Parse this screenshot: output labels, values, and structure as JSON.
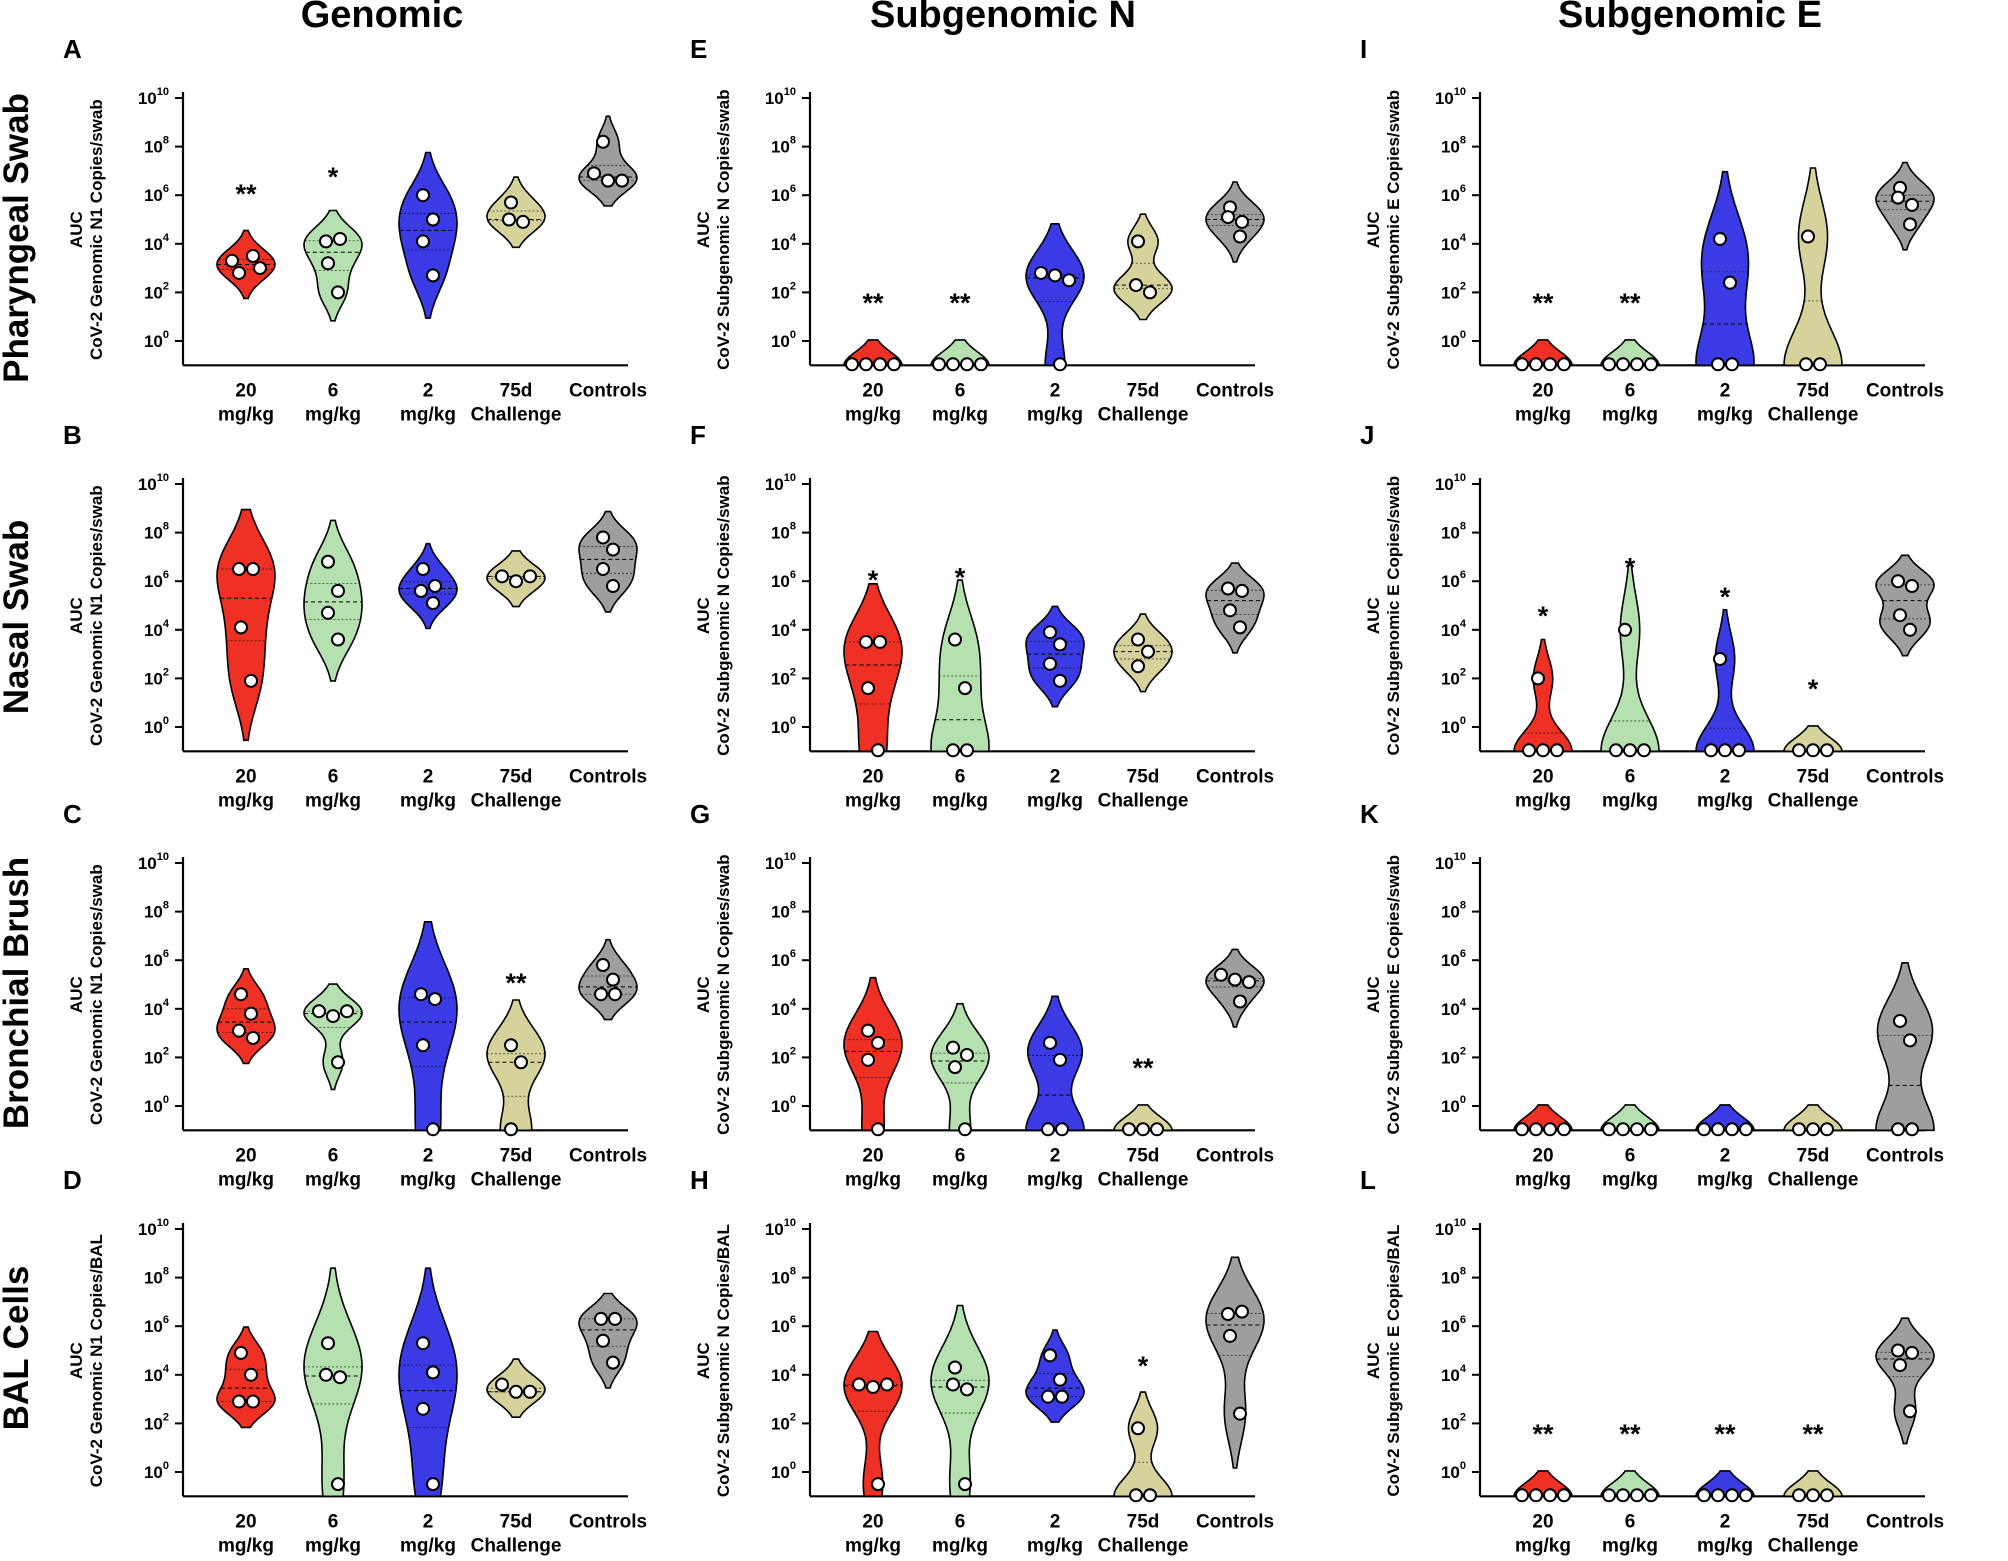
{
  "figure": {
    "column_titles": [
      "Genomic",
      "Subgenomic N",
      "Subgenomic E"
    ],
    "row_titles": [
      "Pharyngeal Swab",
      "Nasal Swab",
      "Bronchial  Brush",
      "BAL Cells"
    ],
    "ytick_base": "10",
    "ytick_exponents": [
      "0",
      "2",
      "4",
      "6",
      "8",
      "10"
    ],
    "category_line1": [
      "20",
      "6",
      "2",
      "75d",
      "Controls"
    ],
    "category_line2": [
      "mg/kg",
      "mg/kg",
      "mg/kg",
      "Challenge",
      ""
    ],
    "group_colors": [
      "#ee3124",
      "#b5e0b0",
      "#3b3be6",
      "#d6d29b",
      "#9e9e9e"
    ]
  },
  "chart_data": [
    {
      "id": "A",
      "type": "violin",
      "row": "Pharyngeal Swab",
      "col": "Genomic",
      "ylabel_top": "AUC",
      "ylabel": "CoV-2 Genomic N1 Copies/swab",
      "yscale": "log10",
      "ylim_exp": [
        -1,
        10
      ],
      "categories": [
        "20 mg/kg",
        "6 mg/kg",
        "2 mg/kg",
        "75d Challenge",
        "Controls"
      ],
      "points_log10": [
        [
          3.3,
          2.8,
          3.0,
          3.5
        ],
        [
          4.1,
          4.2,
          3.2,
          2.0
        ],
        [
          6.0,
          5.0,
          4.1,
          2.7
        ],
        [
          5.7,
          5.0,
          4.9
        ],
        [
          8.2,
          6.9,
          6.6,
          6.6
        ]
      ],
      "significance": [
        "**",
        "*",
        "",
        "",
        ""
      ]
    },
    {
      "id": "B",
      "type": "violin",
      "row": "Nasal Swab",
      "col": "Genomic",
      "ylabel_top": "AUC",
      "ylabel": "CoV-2 Genomic N1 Copies/swab",
      "yscale": "log10",
      "ylim_exp": [
        -1,
        10
      ],
      "categories": [
        "20 mg/kg",
        "6 mg/kg",
        "2 mg/kg",
        "75d Challenge",
        "Controls"
      ],
      "points_log10": [
        [
          6.5,
          6.5,
          4.1,
          1.9
        ],
        [
          6.8,
          5.6,
          4.7,
          3.6
        ],
        [
          6.5,
          5.6,
          5.8,
          5.1
        ],
        [
          6.2,
          6.0,
          6.2
        ],
        [
          7.8,
          7.3,
          6.5,
          5.8
        ]
      ],
      "significance": [
        "",
        "",
        "",
        "",
        ""
      ]
    },
    {
      "id": "C",
      "type": "violin",
      "row": "Bronchial  Brush",
      "col": "Genomic",
      "ylabel_top": "AUC",
      "ylabel": "CoV-2 Genomic N1 Copies/swab",
      "yscale": "log10",
      "ylim_exp": [
        -1,
        10
      ],
      "categories": [
        "20 mg/kg",
        "6 mg/kg",
        "2 mg/kg",
        "75d Challenge",
        "Controls"
      ],
      "points_log10": [
        [
          4.6,
          3.8,
          3.1,
          2.8
        ],
        [
          3.9,
          3.7,
          3.9,
          1.8
        ],
        [
          4.6,
          4.4,
          2.5,
          -1
        ],
        [
          2.5,
          1.8,
          -1
        ],
        [
          5.8,
          5.2,
          4.6,
          4.6
        ]
      ],
      "significance": [
        "",
        "",
        "",
        "**",
        ""
      ]
    },
    {
      "id": "D",
      "type": "violin",
      "row": "BAL Cells",
      "col": "Genomic",
      "ylabel_top": "AUC",
      "ylabel": "CoV-2 Genomic N1 Copies/BAL",
      "yscale": "log10",
      "ylim_exp": [
        -1,
        10
      ],
      "categories": [
        "20 mg/kg",
        "6 mg/kg",
        "2 mg/kg",
        "75d Challenge",
        "Controls"
      ],
      "points_log10": [
        [
          4.9,
          4.0,
          2.9,
          2.9
        ],
        [
          5.3,
          4.0,
          3.9,
          -0.5
        ],
        [
          5.3,
          4.1,
          2.6,
          -0.5
        ],
        [
          3.6,
          3.3,
          3.3
        ],
        [
          6.3,
          6.3,
          5.4,
          4.5
        ]
      ],
      "significance": [
        "",
        "",
        "",
        "",
        ""
      ]
    },
    {
      "id": "E",
      "type": "violin",
      "row": "Pharyngeal Swab",
      "col": "Subgenomic N",
      "ylabel_top": "AUC",
      "ylabel": "CoV-2 Subgenomic N Copies/swab",
      "yscale": "log10",
      "ylim_exp": [
        -1,
        10
      ],
      "categories": [
        "20 mg/kg",
        "6 mg/kg",
        "2 mg/kg",
        "75d Challenge",
        "Controls"
      ],
      "points_log10": [
        [
          -1,
          -1,
          -1,
          -1
        ],
        [
          -1,
          -1,
          -1,
          -1
        ],
        [
          2.8,
          2.7,
          2.5,
          -1
        ],
        [
          4.1,
          2.3,
          2.0
        ],
        [
          5.5,
          5.1,
          4.9,
          4.3
        ]
      ],
      "significance": [
        "**",
        "**",
        "",
        "",
        ""
      ]
    },
    {
      "id": "F",
      "type": "violin",
      "row": "Nasal Swab",
      "col": "Subgenomic N",
      "ylabel_top": "AUC",
      "ylabel": "CoV-2 Subgenomic N Copies/swab",
      "yscale": "log10",
      "ylim_exp": [
        -1,
        10
      ],
      "categories": [
        "20 mg/kg",
        "6 mg/kg",
        "2 mg/kg",
        "75d Challenge",
        "Controls"
      ],
      "points_log10": [
        [
          3.5,
          3.5,
          1.6,
          -1
        ],
        [
          3.6,
          1.6,
          -1,
          -1
        ],
        [
          3.9,
          3.4,
          2.6,
          1.9
        ],
        [
          3.6,
          3.1,
          2.5
        ],
        [
          5.7,
          5.6,
          4.8,
          4.1
        ]
      ],
      "significance": [
        "*",
        "*",
        "",
        "",
        ""
      ]
    },
    {
      "id": "G",
      "type": "violin",
      "row": "Bronchial  Brush",
      "col": "Subgenomic N",
      "ylabel_top": "AUC",
      "ylabel": "CoV-2 Subgenomic N Copies/swab",
      "yscale": "log10",
      "ylim_exp": [
        -1,
        10
      ],
      "categories": [
        "20 mg/kg",
        "6 mg/kg",
        "2 mg/kg",
        "75d Challenge",
        "Controls"
      ],
      "points_log10": [
        [
          3.1,
          2.6,
          1.9,
          -1
        ],
        [
          2.4,
          2.1,
          1.6,
          -1
        ],
        [
          2.6,
          1.9,
          -1,
          -1
        ],
        [
          -1,
          -1,
          -1
        ],
        [
          5.4,
          5.2,
          5.1,
          4.3
        ]
      ],
      "significance": [
        "",
        "",
        "",
        "**",
        ""
      ]
    },
    {
      "id": "H",
      "type": "violin",
      "row": "BAL Cells",
      "col": "Subgenomic N",
      "ylabel_top": "AUC",
      "ylabel": "CoV-2 Subgenomic N Copies/BAL",
      "yscale": "log10",
      "ylim_exp": [
        -1,
        10
      ],
      "categories": [
        "20 mg/kg",
        "6 mg/kg",
        "2 mg/kg",
        "75d Challenge",
        "Controls"
      ],
      "points_log10": [
        [
          3.6,
          3.5,
          3.6,
          -0.5
        ],
        [
          4.3,
          3.6,
          3.4,
          -0.5
        ],
        [
          4.8,
          3.8,
          3.1,
          3.1
        ],
        [
          1.8,
          -1,
          -1
        ],
        [
          6.5,
          6.6,
          5.6,
          2.4
        ]
      ],
      "significance": [
        "",
        "",
        "",
        "*",
        ""
      ]
    },
    {
      "id": "I",
      "type": "violin",
      "row": "Pharyngeal Swab",
      "col": "Subgenomic E",
      "ylabel_top": "AUC",
      "ylabel": "CoV-2 Subgenomic E Copies/swab",
      "yscale": "log10",
      "ylim_exp": [
        -1,
        10
      ],
      "categories": [
        "20 mg/kg",
        "6 mg/kg",
        "2 mg/kg",
        "75d Challenge",
        "Controls"
      ],
      "points_log10": [
        [
          -1,
          -1,
          -1,
          -1
        ],
        [
          -1,
          -1,
          -1,
          -1
        ],
        [
          4.2,
          2.4,
          -1,
          -1
        ],
        [
          4.3,
          -1,
          -1
        ],
        [
          6.3,
          5.9,
          5.6,
          4.8
        ]
      ],
      "significance": [
        "**",
        "**",
        "",
        "",
        ""
      ]
    },
    {
      "id": "J",
      "type": "violin",
      "row": "Nasal Swab",
      "col": "Subgenomic E",
      "ylabel_top": "AUC",
      "ylabel": "CoV-2 Subgenomic E Copies/swab",
      "yscale": "log10",
      "ylim_exp": [
        -1,
        10
      ],
      "categories": [
        "20 mg/kg",
        "6 mg/kg",
        "2 mg/kg",
        "75d Challenge",
        "Controls"
      ],
      "points_log10": [
        [
          2.0,
          -1,
          -1,
          -1
        ],
        [
          4.0,
          -1,
          -1,
          -1
        ],
        [
          2.8,
          -1,
          -1,
          -1
        ],
        [
          -1,
          -1,
          -1
        ],
        [
          6.0,
          5.8,
          4.6,
          4.0
        ]
      ],
      "significance": [
        "*",
        "*",
        "*",
        "*",
        ""
      ]
    },
    {
      "id": "K",
      "type": "violin",
      "row": "Bronchial  Brush",
      "col": "Subgenomic E",
      "ylabel_top": "AUC",
      "ylabel": "CoV-2 Subgenomic E Copies/swab",
      "yscale": "log10",
      "ylim_exp": [
        -1,
        10
      ],
      "categories": [
        "20 mg/kg",
        "6 mg/kg",
        "2 mg/kg",
        "75d Challenge",
        "Controls"
      ],
      "points_log10": [
        [
          -1,
          -1,
          -1,
          -1
        ],
        [
          -1,
          -1,
          -1,
          -1
        ],
        [
          -1,
          -1,
          -1,
          -1
        ],
        [
          -1,
          -1,
          -1
        ],
        [
          3.5,
          2.7,
          -1,
          -1
        ]
      ],
      "significance": [
        "",
        "",
        "",
        "",
        ""
      ]
    },
    {
      "id": "L",
      "type": "violin",
      "row": "BAL Cells",
      "col": "Subgenomic E",
      "ylabel_top": "AUC",
      "ylabel": "CoV-2 Subgenomic E Copies/BAL",
      "yscale": "log10",
      "ylim_exp": [
        -1,
        10
      ],
      "categories": [
        "20 mg/kg",
        "6 mg/kg",
        "2 mg/kg",
        "75d Challenge",
        "Controls"
      ],
      "points_log10": [
        [
          -1,
          -1,
          -1,
          -1
        ],
        [
          -1,
          -1,
          -1,
          -1
        ],
        [
          -1,
          -1,
          -1,
          -1
        ],
        [
          -1,
          -1,
          -1
        ],
        [
          5.0,
          4.9,
          4.4,
          2.5
        ]
      ],
      "significance": [
        "**",
        "**",
        "**",
        "**",
        ""
      ]
    }
  ]
}
